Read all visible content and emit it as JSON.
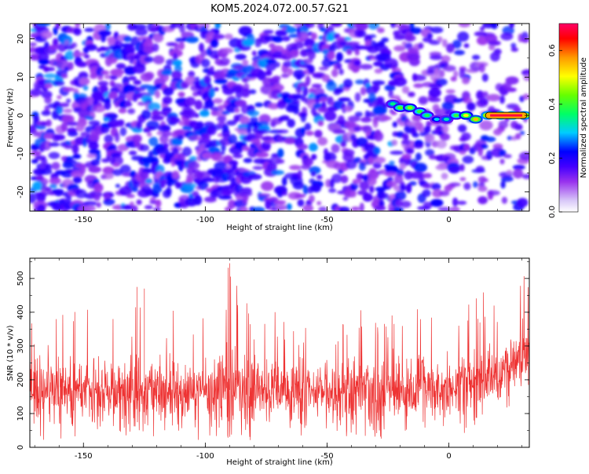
{
  "figure": {
    "title": "KOM5.2024.072.00.57.G21"
  },
  "chart_data": [
    {
      "type": "heatmap",
      "xlabel": "Height of straight line (km)",
      "ylabel": "Frequency (Hz)",
      "xlim": [
        -172,
        33
      ],
      "ylim": [
        -25,
        24
      ],
      "xticks": [
        -150,
        -100,
        -50,
        0
      ],
      "yticks": [
        20,
        10,
        0,
        -10,
        -20
      ],
      "colorbar": {
        "label": "Normalized spectral amplitude",
        "range": [
          0,
          0.7
        ],
        "ticks": [
          0.0,
          0.2,
          0.4,
          0.6
        ],
        "colormap": [
          "#ffffff",
          "#b8a0f0",
          "#8a2be2",
          "#0000ff",
          "#00ffff",
          "#00ff00",
          "#ffff00",
          "#ff8000",
          "#ff0000",
          "#ff0070"
        ]
      },
      "signal_track": [
        {
          "x": -23,
          "f": 3,
          "amp": 0.35
        },
        {
          "x": -20,
          "f": 2,
          "amp": 0.42
        },
        {
          "x": -16,
          "f": 2,
          "amp": 0.45
        },
        {
          "x": -12,
          "f": 1,
          "amp": 0.4
        },
        {
          "x": -9,
          "f": 0,
          "amp": 0.38
        },
        {
          "x": -5,
          "f": -1,
          "amp": 0.3
        },
        {
          "x": -1,
          "f": -1,
          "amp": 0.33
        },
        {
          "x": 3,
          "f": 0,
          "amp": 0.4
        },
        {
          "x": 7,
          "f": 0,
          "amp": 0.5
        },
        {
          "x": 11,
          "f": -1,
          "amp": 0.55
        },
        {
          "x": 16,
          "f": 0,
          "amp": 0.6
        },
        {
          "x": 21,
          "f": 0,
          "amp": 0.65
        },
        {
          "x": 26,
          "f": 0,
          "amp": 0.65
        },
        {
          "x": 31,
          "f": 0,
          "amp": 0.6
        }
      ]
    },
    {
      "type": "line",
      "xlabel": "Height of straight line (km)",
      "ylabel": "SNR (10 * v/v)",
      "xlim": [
        -172,
        33
      ],
      "ylim": [
        0,
        560
      ],
      "xticks": [
        -150,
        -100,
        -50,
        0
      ],
      "yticks": [
        0,
        100,
        200,
        300,
        400,
        500
      ],
      "color": "#ee3333",
      "series": [
        {
          "x": [
            -172,
            -160,
            -150,
            -140,
            -130,
            -120,
            -110,
            -100,
            -90,
            -80,
            -70,
            -60,
            -50,
            -40,
            -30,
            -20,
            -10,
            0,
            10,
            20,
            30,
            33
          ],
          "mean": [
            170,
            165,
            170,
            168,
            172,
            170,
            168,
            165,
            170,
            168,
            166,
            165,
            168,
            165,
            165,
            168,
            175,
            185,
            200,
            220,
            260,
            290
          ],
          "max": [
            380,
            390,
            410,
            420,
            475,
            430,
            400,
            410,
            545,
            410,
            400,
            390,
            380,
            410,
            420,
            430,
            440,
            430,
            460,
            470,
            530,
            555
          ],
          "min": [
            20,
            25,
            20,
            25,
            20,
            25,
            20,
            20,
            25,
            20,
            25,
            20,
            25,
            20,
            25,
            20,
            25,
            40,
            40,
            45,
            60,
            80
          ]
        }
      ]
    }
  ]
}
